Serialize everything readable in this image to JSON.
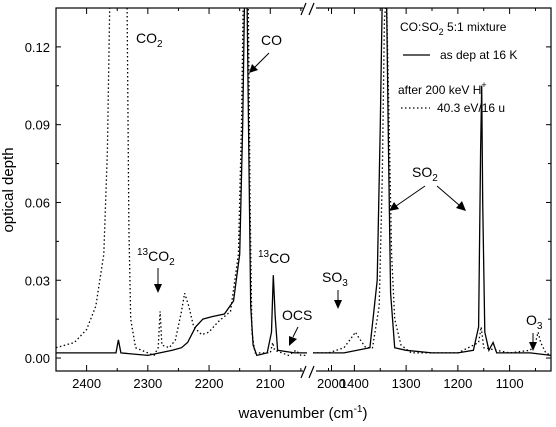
{
  "chart_data": {
    "type": "line",
    "xlabel": "wavenumber (cm",
    "xlabel_sup": "-1",
    "xlabel_close": ")",
    "ylabel": "optical depth",
    "y_ticks": [
      "0.00",
      "0.03",
      "0.06",
      "0.09",
      "0.12"
    ],
    "ylim": [
      -0.005,
      0.135
    ],
    "x_axis_break": true,
    "x_ticks_left": [
      "2400",
      "2300",
      "2200",
      "2100",
      "2000"
    ],
    "x_ticks_right": [
      "1400",
      "1300",
      "1200",
      "1100"
    ],
    "xlim_left": [
      2450,
      2040
    ],
    "xlim_right": [
      1480,
      1020
    ],
    "grid": false,
    "legend": {
      "placement": "top-right",
      "title": "CO:SO",
      "title_sub": "2",
      "title_rest": " 5:1 mixture",
      "entries": [
        {
          "label": "as dep at 16 K",
          "style": "solid"
        },
        {
          "label_line1": "after 200 keV H",
          "label_line1_sup": "+",
          "label_line2": "40.3  eV/16 u",
          "style": "dotted"
        }
      ]
    },
    "annotations": [
      {
        "text": "CO",
        "sub": "2"
      },
      {
        "text": "CO"
      },
      {
        "pre_sup": "13",
        "text": "CO",
        "sub": "2"
      },
      {
        "pre_sup": "13",
        "text": "CO"
      },
      {
        "text": "OCS"
      },
      {
        "text": "SO",
        "sub": "3"
      },
      {
        "text": "SO",
        "sub": "2"
      },
      {
        "text": "O",
        "sub": "3"
      }
    ],
    "series": [
      {
        "style": "solid",
        "left": [
          [
            2450,
            0.002
          ],
          [
            2420,
            0.002
          ],
          [
            2380,
            0.002
          ],
          [
            2352,
            0.002
          ],
          [
            2348,
            0.007
          ],
          [
            2344,
            0.002
          ],
          [
            2300,
            0.001
          ],
          [
            2260,
            0.003
          ],
          [
            2245,
            0.004
          ],
          [
            2235,
            0.006
          ],
          [
            2222,
            0.012
          ],
          [
            2210,
            0.015
          ],
          [
            2195,
            0.016
          ],
          [
            2175,
            0.017
          ],
          [
            2160,
            0.022
          ],
          [
            2150,
            0.04
          ],
          [
            2145,
            0.09
          ],
          [
            2142,
            0.14
          ],
          [
            2138,
            0.14
          ],
          [
            2135,
            0.08
          ],
          [
            2132,
            0.02
          ],
          [
            2128,
            0.005
          ],
          [
            2122,
            0.001
          ],
          [
            2105,
            0.002
          ],
          [
            2098,
            0.01
          ],
          [
            2095,
            0.032
          ],
          [
            2092,
            0.016
          ],
          [
            2088,
            0.003
          ],
          [
            2060,
            0.002
          ],
          [
            2040,
            0.002
          ]
        ],
        "right": [
          [
            1480,
            0.002
          ],
          [
            1420,
            0.002
          ],
          [
            1370,
            0.004
          ],
          [
            1356,
            0.03
          ],
          [
            1350,
            0.09
          ],
          [
            1346,
            0.14
          ],
          [
            1338,
            0.14
          ],
          [
            1334,
            0.08
          ],
          [
            1330,
            0.025
          ],
          [
            1322,
            0.004
          ],
          [
            1300,
            0.003
          ],
          [
            1250,
            0.002
          ],
          [
            1200,
            0.002
          ],
          [
            1170,
            0.003
          ],
          [
            1160,
            0.012
          ],
          [
            1156,
            0.08
          ],
          [
            1154,
            0.105
          ],
          [
            1152,
            0.06
          ],
          [
            1148,
            0.01
          ],
          [
            1140,
            0.003
          ],
          [
            1132,
            0.006
          ],
          [
            1125,
            0.002
          ],
          [
            1060,
            0.002
          ],
          [
            1020,
            0.001
          ]
        ]
      },
      {
        "style": "dotted",
        "left": [
          [
            2450,
            0.004
          ],
          [
            2420,
            0.006
          ],
          [
            2400,
            0.011
          ],
          [
            2385,
            0.02
          ],
          [
            2372,
            0.04
          ],
          [
            2366,
            0.08
          ],
          [
            2362,
            0.14
          ],
          [
            2334,
            0.14
          ],
          [
            2331,
            0.05
          ],
          [
            2328,
            0.015
          ],
          [
            2320,
            0.004
          ],
          [
            2300,
            0.002
          ],
          [
            2290,
            0.001
          ],
          [
            2283,
            0.004
          ],
          [
            2280,
            0.018
          ],
          [
            2277,
            0.005
          ],
          [
            2265,
            0.004
          ],
          [
            2255,
            0.007
          ],
          [
            2245,
            0.018
          ],
          [
            2240,
            0.025
          ],
          [
            2233,
            0.02
          ],
          [
            2225,
            0.012
          ],
          [
            2212,
            0.009
          ],
          [
            2200,
            0.01
          ],
          [
            2185,
            0.014
          ],
          [
            2165,
            0.018
          ],
          [
            2152,
            0.04
          ],
          [
            2147,
            0.09
          ],
          [
            2144,
            0.14
          ],
          [
            2136,
            0.14
          ],
          [
            2133,
            0.06
          ],
          [
            2130,
            0.01
          ],
          [
            2125,
            0.002
          ],
          [
            2100,
            0.002
          ],
          [
            2096,
            0.006
          ],
          [
            2093,
            0.003
          ],
          [
            2070,
            0.001
          ],
          [
            2058,
            0.003
          ],
          [
            2050,
            0.001
          ],
          [
            2040,
            0.001
          ]
        ],
        "right": [
          [
            1480,
            0.002
          ],
          [
            1450,
            0.002
          ],
          [
            1420,
            0.004
          ],
          [
            1405,
            0.008
          ],
          [
            1398,
            0.01
          ],
          [
            1392,
            0.008
          ],
          [
            1378,
            0.004
          ],
          [
            1365,
            0.004
          ],
          [
            1352,
            0.02
          ],
          [
            1346,
            0.07
          ],
          [
            1342,
            0.13
          ],
          [
            1338,
            0.14
          ],
          [
            1333,
            0.09
          ],
          [
            1328,
            0.04
          ],
          [
            1322,
            0.015
          ],
          [
            1310,
            0.005
          ],
          [
            1290,
            0.002
          ],
          [
            1200,
            0.002
          ],
          [
            1160,
            0.006
          ],
          [
            1155,
            0.012
          ],
          [
            1150,
            0.004
          ],
          [
            1100,
            0.002
          ],
          [
            1060,
            0.003
          ],
          [
            1050,
            0.006
          ],
          [
            1045,
            0.01
          ],
          [
            1040,
            0.006
          ],
          [
            1030,
            0.002
          ],
          [
            1020,
            0.001
          ]
        ]
      }
    ]
  }
}
